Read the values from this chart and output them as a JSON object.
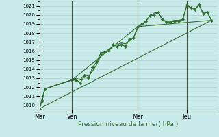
{
  "background_color": "#c8eae8",
  "grid_color": "#b0d0cc",
  "line_color": "#2d6e2d",
  "xlabel_text": "Pression niveau de la mer( hPa )",
  "ylim": [
    1009.5,
    1021.5
  ],
  "yticks": [
    1010,
    1011,
    1012,
    1013,
    1014,
    1015,
    1016,
    1017,
    1018,
    1019,
    1020,
    1021
  ],
  "day_labels": [
    "Mar",
    "Ven",
    "Mer",
    "Jeu"
  ],
  "day_positions": [
    0,
    72,
    216,
    324
  ],
  "xlim": [
    0,
    390
  ],
  "vline_color": "#445544",
  "lines": [
    {
      "x": [
        0,
        6,
        12,
        72,
        81,
        90,
        99,
        108,
        117,
        126,
        135,
        144,
        153,
        162,
        171,
        180,
        189,
        198,
        207,
        216,
        225,
        234,
        243,
        252,
        261,
        270,
        279,
        288,
        297,
        306,
        315,
        324,
        333,
        342,
        351,
        360,
        369,
        378
      ],
      "y": [
        1009.6,
        1010.5,
        1011.8,
        1012.8,
        1012.8,
        1012.5,
        1013.2,
        1013.0,
        1014.2,
        1014.8,
        1015.8,
        1015.9,
        1016.0,
        1016.7,
        1016.5,
        1016.7,
        1016.5,
        1017.3,
        1017.5,
        1018.7,
        1019.0,
        1019.3,
        1019.9,
        1020.0,
        1020.3,
        1019.5,
        1019.2,
        1019.2,
        1019.3,
        1019.3,
        1019.5,
        1021.1,
        1020.8,
        1020.6,
        1021.1,
        1020.1,
        1020.3,
        1019.4
      ],
      "marker": "D",
      "markersize": 2.2,
      "linewidth": 0.9,
      "linestyle": "-",
      "with_marker": true
    },
    {
      "x": [
        0,
        12,
        72,
        216,
        378
      ],
      "y": [
        1009.6,
        1011.8,
        1012.8,
        1018.7,
        1019.4
      ],
      "marker": null,
      "markersize": 0,
      "linewidth": 0.8,
      "linestyle": "-",
      "with_marker": false
    },
    {
      "x": [
        0,
        12,
        72,
        81,
        90,
        99,
        108,
        117,
        126,
        135,
        144,
        153,
        162,
        171,
        180,
        189,
        198,
        207,
        216,
        225,
        234,
        243,
        252,
        261,
        270,
        279,
        288,
        297,
        306,
        315,
        324,
        333,
        342,
        351,
        360,
        369,
        378
      ],
      "y": [
        1009.6,
        1011.8,
        1012.8,
        1013.0,
        1012.8,
        1013.4,
        1013.2,
        1013.8,
        1014.5,
        1015.5,
        1015.9,
        1016.2,
        1016.5,
        1016.7,
        1016.9,
        1016.8,
        1017.1,
        1017.5,
        1018.5,
        1018.9,
        1019.3,
        1019.9,
        1020.2,
        1020.3,
        1019.5,
        1019.3,
        1019.3,
        1019.4,
        1019.4,
        1019.5,
        1021.0,
        1020.8,
        1020.7,
        1021.1,
        1020.2,
        1020.3,
        1019.4
      ],
      "marker": null,
      "markersize": 0,
      "linewidth": 0.8,
      "linestyle": "-",
      "with_marker": false
    },
    {
      "x": [
        0,
        378
      ],
      "y": [
        1009.6,
        1019.4
      ],
      "marker": null,
      "markersize": 0,
      "linewidth": 0.8,
      "linestyle": "-",
      "with_marker": false
    }
  ]
}
